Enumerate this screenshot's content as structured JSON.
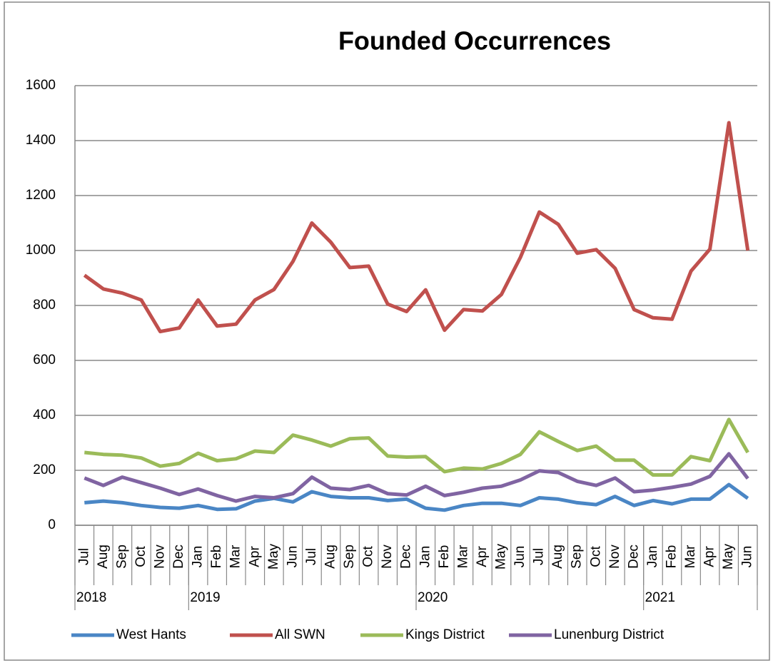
{
  "chart_data": {
    "type": "line",
    "title": "Founded Occurrences",
    "categories": [
      "Jul",
      "Aug",
      "Sep",
      "Oct",
      "Nov",
      "Dec",
      "Jan",
      "Feb",
      "Mar",
      "Apr",
      "May",
      "Jun",
      "Jul",
      "Aug",
      "Sep",
      "Oct",
      "Nov",
      "Dec",
      "Jan",
      "Feb",
      "Mar",
      "Apr",
      "May",
      "Jun",
      "Jul",
      "Aug",
      "Sep",
      "Oct",
      "Nov",
      "Dec",
      "Jan",
      "Feb",
      "Mar",
      "Apr",
      "May",
      "Jun"
    ],
    "year_groups": [
      {
        "label": "2018",
        "months": 6
      },
      {
        "label": "2019",
        "months": 12
      },
      {
        "label": "2020",
        "months": 12
      },
      {
        "label": "2021",
        "months": 6
      }
    ],
    "series": [
      {
        "name": "West Hants",
        "color": "#4a86c5",
        "values": [
          82,
          88,
          82,
          72,
          65,
          62,
          72,
          58,
          60,
          88,
          98,
          85,
          122,
          105,
          100,
          100,
          90,
          95,
          62,
          55,
          72,
          80,
          80,
          72,
          100,
          95,
          82,
          75,
          105,
          72,
          90,
          78,
          95,
          95,
          148,
          98
        ]
      },
      {
        "name": "All SWN",
        "color": "#c0504d",
        "values": [
          910,
          860,
          845,
          820,
          705,
          718,
          820,
          725,
          732,
          820,
          858,
          960,
          1100,
          1030,
          938,
          943,
          805,
          778,
          857,
          710,
          785,
          780,
          840,
          975,
          1140,
          1095,
          990,
          1003,
          935,
          785,
          755,
          750,
          925,
          1005,
          1465,
          1000
        ]
      },
      {
        "name": "Kings District",
        "color": "#9bbb59",
        "values": [
          265,
          258,
          255,
          245,
          215,
          225,
          262,
          235,
          242,
          270,
          265,
          328,
          310,
          288,
          315,
          318,
          252,
          248,
          250,
          195,
          208,
          205,
          225,
          258,
          340,
          305,
          272,
          288,
          237,
          237,
          183,
          183,
          250,
          235,
          385,
          265
        ]
      },
      {
        "name": "Lunenburg District",
        "color": "#8064a2",
        "values": [
          172,
          145,
          175,
          155,
          135,
          112,
          132,
          108,
          88,
          105,
          100,
          115,
          175,
          135,
          130,
          145,
          115,
          110,
          142,
          108,
          120,
          135,
          142,
          165,
          198,
          192,
          160,
          145,
          172,
          122,
          128,
          138,
          150,
          178,
          260,
          170
        ]
      }
    ],
    "ylim": [
      0,
      1600
    ],
    "yticks": [
      0,
      200,
      400,
      600,
      800,
      1000,
      1200,
      1400,
      1600
    ],
    "grid": true,
    "legend": "bottom"
  }
}
